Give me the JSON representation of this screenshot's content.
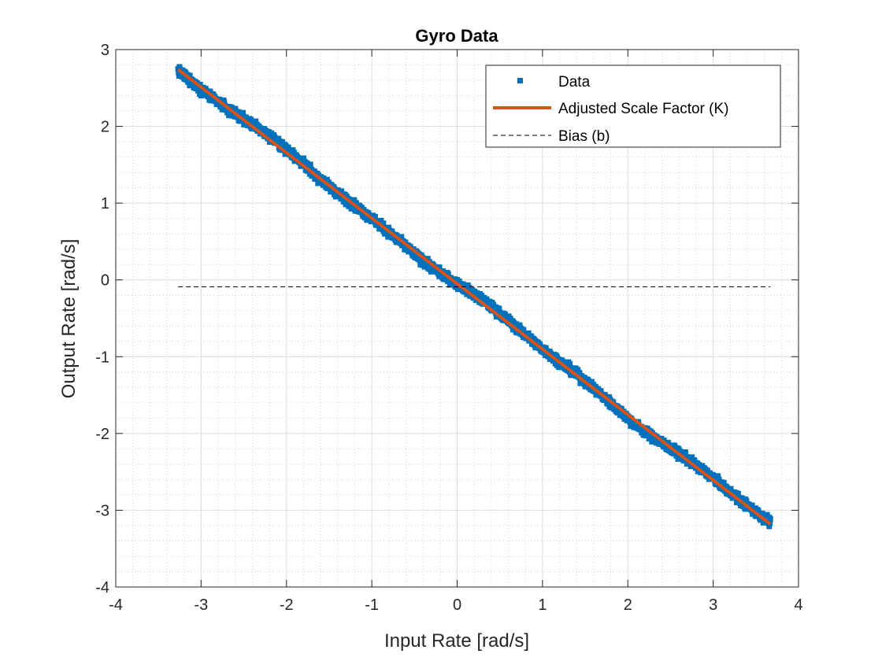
{
  "chart_data": {
    "type": "scatter",
    "title": "Gyro Data",
    "xlabel": "Input Rate [rad/s]",
    "ylabel": "Output Rate [rad/s]",
    "xlim": [
      -4,
      4
    ],
    "ylim": [
      -4,
      3
    ],
    "xticks": [
      -4,
      -3,
      -2,
      -1,
      0,
      1,
      2,
      3,
      4
    ],
    "yticks": [
      -4,
      -3,
      -2,
      -1,
      0,
      1,
      2,
      3
    ],
    "xtick_labels": [
      "-4",
      "-3",
      "-2",
      "-1",
      "0",
      "1",
      "2",
      "3",
      "4"
    ],
    "ytick_labels": [
      "-4",
      "-3",
      "-2",
      "-1",
      "0",
      "1",
      "2",
      "3"
    ],
    "grid": true,
    "minor_grid": true,
    "legend_position": "top-right",
    "series": [
      {
        "name": "Data",
        "type": "scatter",
        "color": "#0072BD",
        "x_range": [
          -3.27,
          3.67
        ],
        "fit_slope": -0.853,
        "fit_intercept": -0.05,
        "noise_sd": 0.05
      },
      {
        "name": "Adjusted Scale Factor (K)",
        "type": "line",
        "color": "#D95319",
        "x": [
          -3.27,
          3.67
        ],
        "y": [
          2.74,
          -3.18
        ]
      },
      {
        "name": "Bias (b)",
        "type": "line",
        "style": "dashed",
        "color": "#000000",
        "x": [
          -3.27,
          3.67
        ],
        "y": [
          -0.09,
          -0.09
        ]
      }
    ]
  }
}
